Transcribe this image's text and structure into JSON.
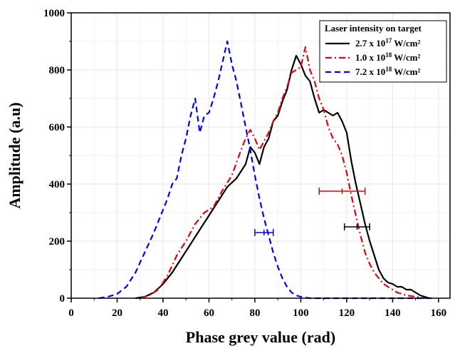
{
  "chart_data": {
    "type": "line",
    "xlabel": "Phase grey value (rad)",
    "ylabel": "Amplitude (a.u)",
    "xlim": [
      0,
      165
    ],
    "ylim": [
      0,
      1000
    ],
    "xticks": [
      0,
      20,
      40,
      60,
      80,
      100,
      120,
      140,
      160
    ],
    "yticks": [
      0,
      200,
      400,
      600,
      800,
      1000
    ],
    "grid": true,
    "legend": {
      "title": "Laser intensity on target",
      "placement": "top-right",
      "entries": [
        {
          "base": "2.7 x 10",
          "exp": "17",
          "unit": " W/cm²"
        },
        {
          "base": "1.0 x 10",
          "exp": "18",
          "unit": " W/cm²"
        },
        {
          "base": "7.2 x 10",
          "exp": "18",
          "unit": " W/cm²"
        }
      ]
    },
    "series": [
      {
        "color": "#000000",
        "style": "solid",
        "points": [
          [
            28,
            0
          ],
          [
            32,
            5
          ],
          [
            36,
            20
          ],
          [
            40,
            50
          ],
          [
            44,
            90
          ],
          [
            48,
            140
          ],
          [
            52,
            190
          ],
          [
            56,
            240
          ],
          [
            60,
            290
          ],
          [
            64,
            340
          ],
          [
            68,
            390
          ],
          [
            72,
            420
          ],
          [
            76,
            470
          ],
          [
            78,
            530
          ],
          [
            80,
            510
          ],
          [
            82,
            470
          ],
          [
            84,
            530
          ],
          [
            86,
            560
          ],
          [
            88,
            620
          ],
          [
            90,
            640
          ],
          [
            92,
            690
          ],
          [
            94,
            730
          ],
          [
            96,
            800
          ],
          [
            98,
            850
          ],
          [
            100,
            820
          ],
          [
            102,
            780
          ],
          [
            104,
            760
          ],
          [
            106,
            700
          ],
          [
            108,
            650
          ],
          [
            110,
            660
          ],
          [
            112,
            650
          ],
          [
            114,
            640
          ],
          [
            116,
            650
          ],
          [
            118,
            620
          ],
          [
            120,
            580
          ],
          [
            122,
            480
          ],
          [
            124,
            400
          ],
          [
            126,
            330
          ],
          [
            128,
            260
          ],
          [
            130,
            200
          ],
          [
            132,
            150
          ],
          [
            134,
            100
          ],
          [
            136,
            70
          ],
          [
            138,
            55
          ],
          [
            140,
            50
          ],
          [
            142,
            40
          ],
          [
            144,
            40
          ],
          [
            146,
            30
          ],
          [
            148,
            30
          ],
          [
            150,
            20
          ],
          [
            152,
            10
          ],
          [
            154,
            5
          ],
          [
            156,
            0
          ]
        ]
      },
      {
        "color": "#e8000b",
        "style": "dashdot",
        "points": [
          [
            30,
            0
          ],
          [
            34,
            10
          ],
          [
            38,
            30
          ],
          [
            42,
            80
          ],
          [
            46,
            150
          ],
          [
            50,
            200
          ],
          [
            54,
            260
          ],
          [
            58,
            300
          ],
          [
            62,
            320
          ],
          [
            66,
            380
          ],
          [
            70,
            430
          ],
          [
            74,
            520
          ],
          [
            76,
            560
          ],
          [
            78,
            590
          ],
          [
            80,
            560
          ],
          [
            82,
            520
          ],
          [
            84,
            550
          ],
          [
            86,
            580
          ],
          [
            88,
            620
          ],
          [
            90,
            650
          ],
          [
            92,
            700
          ],
          [
            94,
            740
          ],
          [
            96,
            790
          ],
          [
            98,
            800
          ],
          [
            100,
            810
          ],
          [
            102,
            880
          ],
          [
            104,
            800
          ],
          [
            106,
            760
          ],
          [
            108,
            700
          ],
          [
            110,
            660
          ],
          [
            112,
            600
          ],
          [
            114,
            560
          ],
          [
            116,
            540
          ],
          [
            118,
            500
          ],
          [
            120,
            440
          ],
          [
            122,
            360
          ],
          [
            124,
            290
          ],
          [
            126,
            220
          ],
          [
            128,
            160
          ],
          [
            130,
            120
          ],
          [
            132,
            90
          ],
          [
            134,
            70
          ],
          [
            136,
            50
          ],
          [
            138,
            40
          ],
          [
            140,
            30
          ],
          [
            142,
            20
          ],
          [
            144,
            15
          ],
          [
            146,
            10
          ],
          [
            150,
            5
          ],
          [
            154,
            0
          ]
        ]
      },
      {
        "color": "#0000ff",
        "style": "dashed",
        "points": [
          [
            12,
            0
          ],
          [
            16,
            5
          ],
          [
            20,
            15
          ],
          [
            24,
            40
          ],
          [
            28,
            90
          ],
          [
            32,
            160
          ],
          [
            36,
            230
          ],
          [
            40,
            310
          ],
          [
            42,
            350
          ],
          [
            44,
            400
          ],
          [
            46,
            420
          ],
          [
            48,
            500
          ],
          [
            50,
            560
          ],
          [
            52,
            640
          ],
          [
            54,
            700
          ],
          [
            56,
            580
          ],
          [
            58,
            640
          ],
          [
            60,
            650
          ],
          [
            62,
            700
          ],
          [
            64,
            760
          ],
          [
            66,
            830
          ],
          [
            68,
            900
          ],
          [
            70,
            820
          ],
          [
            72,
            760
          ],
          [
            74,
            680
          ],
          [
            76,
            600
          ],
          [
            78,
            520
          ],
          [
            80,
            430
          ],
          [
            82,
            350
          ],
          [
            84,
            280
          ],
          [
            86,
            220
          ],
          [
            88,
            160
          ],
          [
            90,
            110
          ],
          [
            92,
            70
          ],
          [
            94,
            40
          ],
          [
            96,
            20
          ],
          [
            98,
            10
          ],
          [
            100,
            5
          ],
          [
            104,
            0
          ],
          [
            120,
            0
          ],
          [
            140,
            0
          ],
          [
            158,
            0
          ]
        ]
      }
    ],
    "error_bars": [
      {
        "color": "#0000ff",
        "y": 230,
        "x_low": 80,
        "x_high": 88
      },
      {
        "color": "#e8000b",
        "y": 375,
        "x_low": 108,
        "x_high": 128
      },
      {
        "color": "#000000",
        "y": 250,
        "x_low": 119,
        "x_high": 130
      }
    ]
  }
}
